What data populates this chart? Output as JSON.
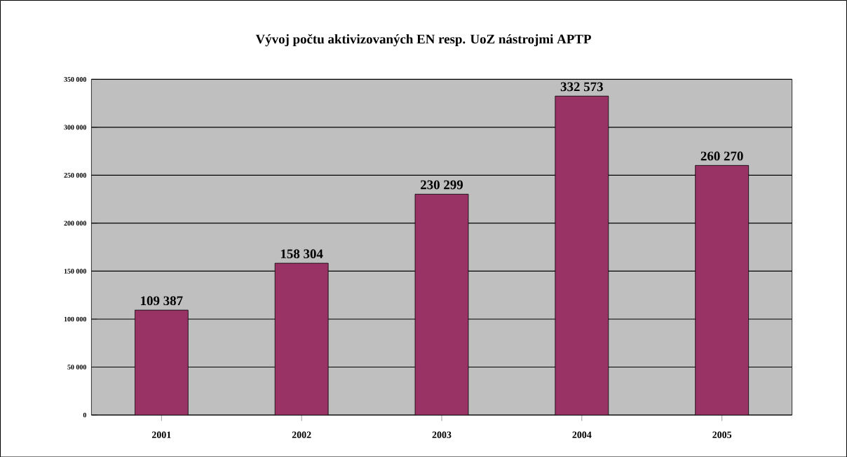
{
  "chart_data": {
    "type": "bar",
    "title": "Vývoj počtu aktivizovaných EN resp. UoZ nástrojmi APTP",
    "categories": [
      "2001",
      "2002",
      "2003",
      "2004",
      "2005"
    ],
    "values": [
      109387,
      158304,
      230299,
      332573,
      260270
    ],
    "value_labels": [
      "109 387",
      "158 304",
      "230 299",
      "332 573",
      "260 270"
    ],
    "color": "#993366",
    "ylim": [
      0,
      350000
    ],
    "yticks": [
      0,
      {
        "value": 50000,
        "label": "50 000"
      },
      {
        "value": 100000,
        "label": "100 000"
      },
      {
        "value": 150000,
        "label": "150 000"
      },
      {
        "value": 200000,
        "label": "200 000"
      },
      {
        "value": 250000,
        "label": "250 000"
      },
      {
        "value": 300000,
        "label": "300 000"
      },
      {
        "value": 350000,
        "label": "350 000"
      }
    ],
    "grid": "y"
  }
}
